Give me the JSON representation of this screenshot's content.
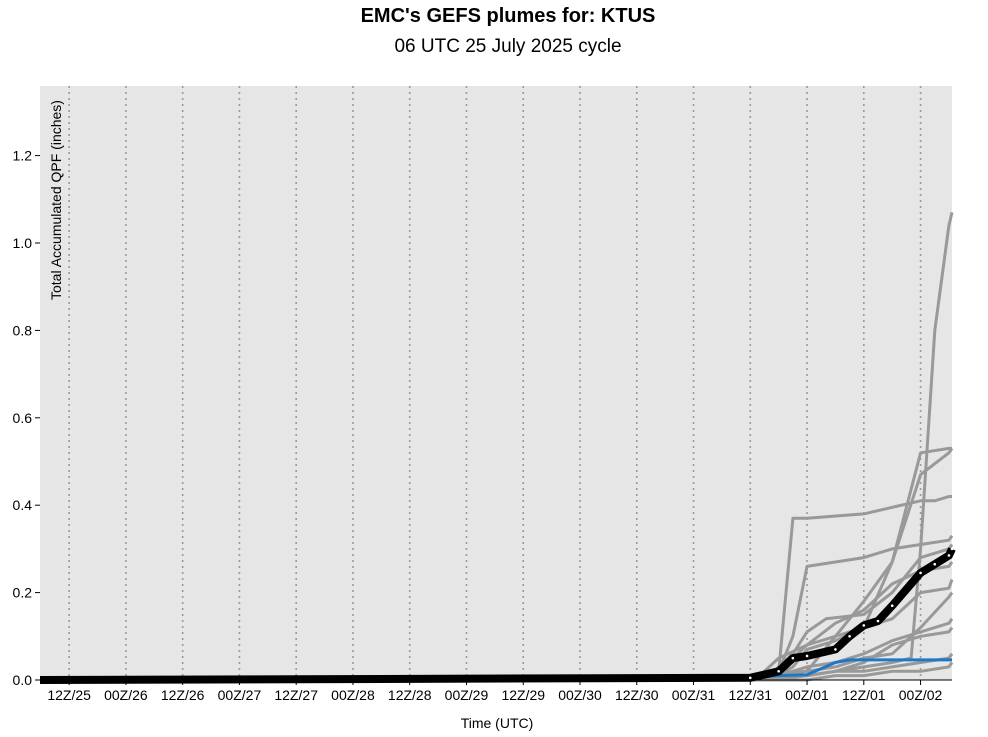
{
  "chart_data": {
    "type": "line",
    "title": "EMC's GEFS plumes for: KTUS",
    "subtitle": "06 UTC 25 July 2025 cycle",
    "xlabel": "Time (UTC)",
    "ylabel": "Total Accumulated QPF (inches)",
    "x_unit": "hours after 2025-07-25 00Z",
    "x_ticks": [
      "12Z/25",
      "00Z/26",
      "12Z/26",
      "00Z/27",
      "12Z/27",
      "00Z/28",
      "12Z/28",
      "00Z/29",
      "12Z/29",
      "00Z/30",
      "12Z/30",
      "00Z/31",
      "12Z/31",
      "00Z/01",
      "12Z/01",
      "00Z/02"
    ],
    "y_ticks": [
      "0.0",
      "0.2",
      "0.4",
      "0.6",
      "0.8",
      "1.0",
      "1.2"
    ],
    "xlim": [
      0,
      200
    ],
    "ylim": [
      0,
      1.36
    ],
    "grid": "vertical dotted at each tick",
    "colors": {
      "members": "#999999",
      "mean": "#000000",
      "control": "#1f77c8",
      "plot_bg": "#e6e6e6"
    },
    "members": [
      {
        "x": [
          0,
          156,
          162,
          165,
          168,
          180,
          192,
          195,
          198,
          200
        ],
        "y": [
          0,
          0.01,
          0.02,
          0.37,
          0.37,
          0.38,
          0.41,
          0.41,
          0.42,
          0.42
        ]
      },
      {
        "x": [
          0,
          156,
          168,
          174,
          180,
          186,
          192,
          198,
          200
        ],
        "y": [
          0,
          0.01,
          0.02,
          0.1,
          0.12,
          0.27,
          0.52,
          0.53,
          0.53
        ]
      },
      {
        "x": [
          0,
          156,
          168,
          174,
          180,
          186,
          190,
          192,
          195,
          198,
          200
        ],
        "y": [
          0,
          0.01,
          0.01,
          0.02,
          0.03,
          0.04,
          0.05,
          0.3,
          0.8,
          1.04,
          1.07
        ]
      },
      {
        "x": [
          0,
          150,
          158,
          162,
          168,
          174,
          180,
          186,
          192,
          198,
          200
        ],
        "y": [
          0,
          0,
          0.01,
          0.05,
          0.08,
          0.1,
          0.18,
          0.27,
          0.47,
          0.52,
          0.53
        ]
      },
      {
        "x": [
          0,
          150,
          160,
          162,
          165,
          168,
          174,
          180,
          186,
          192,
          198,
          200
        ],
        "y": [
          0,
          0,
          0.01,
          0.02,
          0.1,
          0.26,
          0.27,
          0.28,
          0.3,
          0.31,
          0.32,
          0.33
        ]
      },
      {
        "x": [
          0,
          150,
          160,
          164,
          168,
          174,
          180,
          186,
          192,
          198,
          200
        ],
        "y": [
          0,
          0,
          0.01,
          0.04,
          0.08,
          0.13,
          0.16,
          0.22,
          0.25,
          0.26,
          0.27
        ]
      },
      {
        "x": [
          0,
          150,
          160,
          165,
          168,
          172,
          180,
          186,
          192,
          198,
          200
        ],
        "y": [
          0,
          0,
          0.01,
          0.06,
          0.11,
          0.14,
          0.15,
          0.2,
          0.28,
          0.3,
          0.31
        ]
      },
      {
        "x": [
          0,
          156,
          162,
          165,
          168,
          174,
          180,
          186,
          192,
          198,
          200
        ],
        "y": [
          0,
          0.01,
          0.01,
          0.03,
          0.07,
          0.09,
          0.12,
          0.14,
          0.2,
          0.21,
          0.23
        ]
      },
      {
        "x": [
          0,
          156,
          162,
          168,
          174,
          180,
          186,
          192,
          198,
          200
        ],
        "y": [
          0,
          0,
          0.01,
          0.02,
          0.03,
          0.05,
          0.06,
          0.12,
          0.19,
          0.2
        ]
      },
      {
        "x": [
          0,
          158,
          168,
          174,
          180,
          186,
          192,
          198,
          200
        ],
        "y": [
          0,
          0,
          0.01,
          0.02,
          0.04,
          0.08,
          0.1,
          0.11,
          0.12
        ]
      },
      {
        "x": [
          0,
          160,
          168,
          174,
          180,
          186,
          192,
          198,
          200
        ],
        "y": [
          0,
          0,
          0.01,
          0.02,
          0.02,
          0.03,
          0.04,
          0.05,
          0.06
        ]
      },
      {
        "x": [
          0,
          160,
          168,
          174,
          180,
          186,
          192,
          198,
          200
        ],
        "y": [
          0,
          0,
          0,
          0.01,
          0.01,
          0.02,
          0.02,
          0.03,
          0.04
        ]
      },
      {
        "x": [
          0,
          162,
          168,
          174,
          180,
          186,
          192,
          198,
          200
        ],
        "y": [
          0,
          0.01,
          0.03,
          0.04,
          0.06,
          0.09,
          0.11,
          0.13,
          0.14
        ]
      }
    ],
    "mean": {
      "x": [
        0,
        156,
        162,
        165,
        168,
        174,
        177,
        180,
        183,
        186,
        192,
        195,
        198,
        200
      ],
      "y": [
        0,
        0.005,
        0.02,
        0.05,
        0.055,
        0.07,
        0.1,
        0.125,
        0.135,
        0.17,
        0.245,
        0.265,
        0.285,
        0.3
      ]
    },
    "control": {
      "x": [
        0,
        156,
        162,
        168,
        174,
        177,
        180,
        186,
        192,
        198,
        200
      ],
      "y": [
        0,
        0.005,
        0.01,
        0.012,
        0.04,
        0.046,
        0.046,
        0.046,
        0.046,
        0.046,
        0.046
      ]
    }
  }
}
